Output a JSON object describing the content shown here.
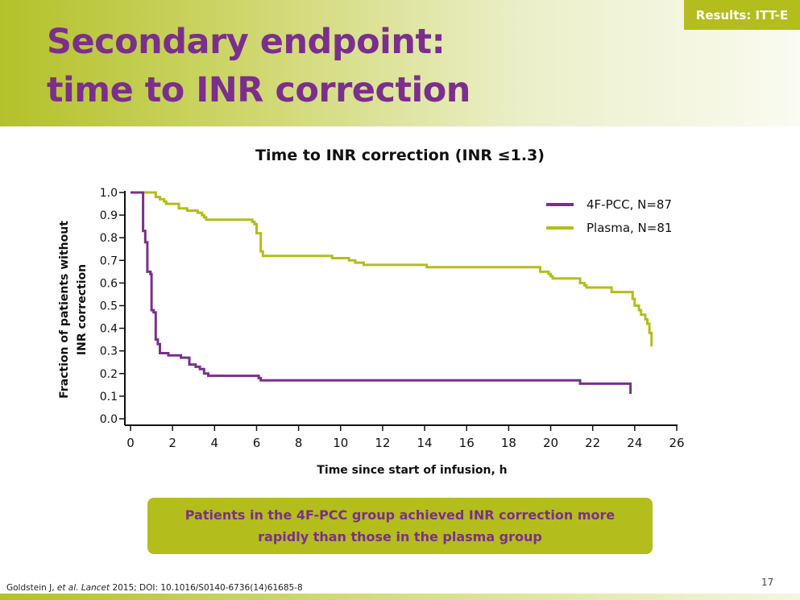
{
  "header": {
    "badge": "Results: ITT-E",
    "title_line1": "Secondary endpoint:",
    "title_line2": "time to INR correction"
  },
  "chart_data": {
    "type": "line",
    "step": true,
    "title": "Time to INR correction (INR ≤1.3)",
    "xlabel": "Time since start of infusion, h",
    "ylabel_line1": "Fraction of patients without",
    "ylabel_line2": "INR correction",
    "xlim": [
      0,
      26
    ],
    "ylim": [
      0,
      1.0
    ],
    "x_ticks": [
      "0",
      "2",
      "4",
      "6",
      "8",
      "10",
      "12",
      "14",
      "16",
      "18",
      "20",
      "22",
      "24",
      "26"
    ],
    "y_ticks": [
      "0.0",
      "0.1",
      "0.2",
      "0.3",
      "0.4",
      "0.5",
      "0.6",
      "0.7",
      "0.8",
      "0.9",
      "1.0"
    ],
    "grid": false,
    "legend_position": "top-right",
    "series": [
      {
        "name": "4F-PCC, N=87",
        "color": "#7b2f8d",
        "points": [
          [
            0,
            1.0
          ],
          [
            0.6,
            1.0
          ],
          [
            0.6,
            0.83
          ],
          [
            0.7,
            0.78
          ],
          [
            0.8,
            0.65
          ],
          [
            0.95,
            0.64
          ],
          [
            1.0,
            0.48
          ],
          [
            1.1,
            0.47
          ],
          [
            1.2,
            0.35
          ],
          [
            1.3,
            0.33
          ],
          [
            1.4,
            0.29
          ],
          [
            1.7,
            0.29
          ],
          [
            1.8,
            0.28
          ],
          [
            2.3,
            0.28
          ],
          [
            2.4,
            0.27
          ],
          [
            2.7,
            0.27
          ],
          [
            2.8,
            0.24
          ],
          [
            3.0,
            0.24
          ],
          [
            3.1,
            0.23
          ],
          [
            3.3,
            0.22
          ],
          [
            3.5,
            0.2
          ],
          [
            3.6,
            0.2
          ],
          [
            3.7,
            0.19
          ],
          [
            6.0,
            0.19
          ],
          [
            6.1,
            0.18
          ],
          [
            6.2,
            0.17
          ],
          [
            21.3,
            0.17
          ],
          [
            21.4,
            0.155
          ],
          [
            23.8,
            0.155
          ],
          [
            23.8,
            0.11
          ]
        ]
      },
      {
        "name": "Plasma, N=81",
        "color": "#b3bd1c",
        "points": [
          [
            0,
            1.0
          ],
          [
            1.0,
            1.0
          ],
          [
            1.2,
            0.98
          ],
          [
            1.4,
            0.97
          ],
          [
            1.6,
            0.96
          ],
          [
            1.7,
            0.95
          ],
          [
            2.2,
            0.95
          ],
          [
            2.3,
            0.93
          ],
          [
            2.6,
            0.93
          ],
          [
            2.7,
            0.92
          ],
          [
            3.1,
            0.92
          ],
          [
            3.2,
            0.91
          ],
          [
            3.4,
            0.9
          ],
          [
            3.5,
            0.89
          ],
          [
            3.6,
            0.88
          ],
          [
            5.7,
            0.88
          ],
          [
            5.8,
            0.87
          ],
          [
            5.9,
            0.86
          ],
          [
            6.0,
            0.82
          ],
          [
            6.2,
            0.82
          ],
          [
            6.2,
            0.74
          ],
          [
            6.3,
            0.72
          ],
          [
            9.5,
            0.72
          ],
          [
            9.6,
            0.71
          ],
          [
            10.3,
            0.71
          ],
          [
            10.4,
            0.7
          ],
          [
            10.6,
            0.7
          ],
          [
            10.7,
            0.69
          ],
          [
            11.0,
            0.69
          ],
          [
            11.1,
            0.68
          ],
          [
            14.0,
            0.68
          ],
          [
            14.1,
            0.67
          ],
          [
            19.4,
            0.67
          ],
          [
            19.5,
            0.65
          ],
          [
            19.8,
            0.65
          ],
          [
            19.9,
            0.64
          ],
          [
            20.0,
            0.63
          ],
          [
            20.1,
            0.62
          ],
          [
            21.3,
            0.62
          ],
          [
            21.4,
            0.6
          ],
          [
            21.6,
            0.59
          ],
          [
            21.7,
            0.58
          ],
          [
            22.8,
            0.58
          ],
          [
            22.9,
            0.56
          ],
          [
            23.8,
            0.56
          ],
          [
            23.9,
            0.53
          ],
          [
            24.0,
            0.5
          ],
          [
            24.2,
            0.48
          ],
          [
            24.3,
            0.46
          ],
          [
            24.5,
            0.44
          ],
          [
            24.6,
            0.42
          ],
          [
            24.7,
            0.38
          ],
          [
            24.8,
            0.36
          ],
          [
            24.8,
            0.32
          ]
        ]
      }
    ]
  },
  "callout": {
    "line1": "Patients in the 4F-PCC group achieved INR correction more",
    "line2": "rapidly than those in the plasma group"
  },
  "footer": {
    "reference_prefix": "Goldstein J, ",
    "reference_italic": "et al. Lancet",
    "reference_suffix": " 2015; DOI: 10.1016/S0140-6736(14)61685-8",
    "page_number": "17"
  }
}
